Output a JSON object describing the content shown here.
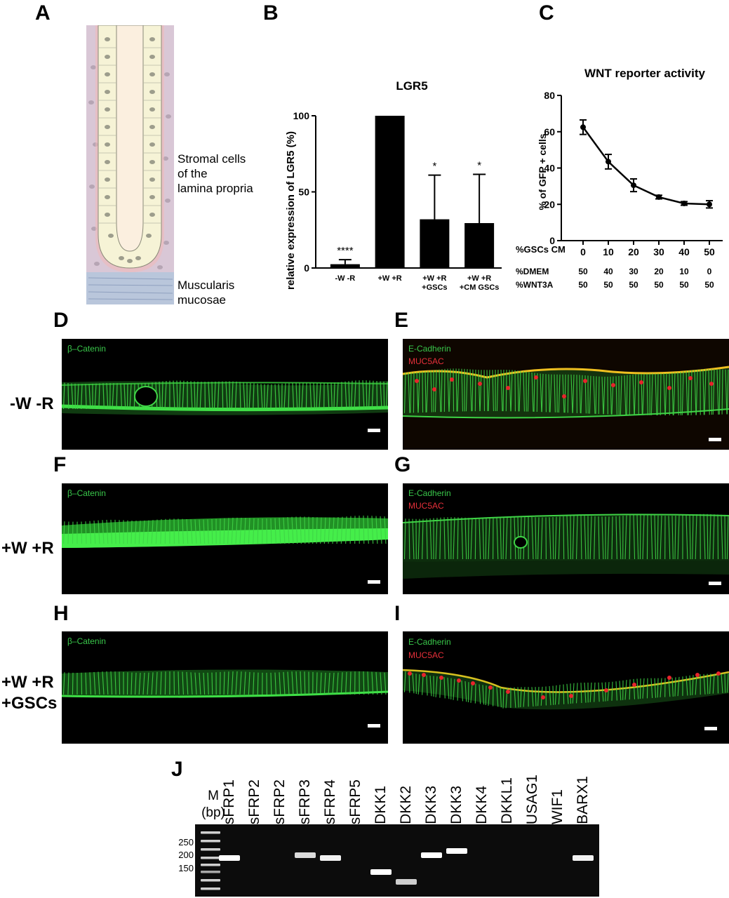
{
  "panels": {
    "A": "A",
    "B": "B",
    "C": "C",
    "D": "D",
    "E": "E",
    "F": "F",
    "G": "G",
    "H": "H",
    "I": "I",
    "J": "J"
  },
  "panel_a": {
    "label_stromal": [
      "Stromal cells",
      "of the",
      "lamina propria"
    ],
    "label_muscularis": [
      "Muscularis",
      "mucosae"
    ],
    "colors": {
      "stroma": "#d9c7d6",
      "epithelium": "#f6f3d6",
      "lumen": "#fbefdf",
      "muscle": "#b9c6db",
      "edge": "#f3b8b8"
    }
  },
  "chart_data": [
    {
      "type": "bar",
      "title": "LGR5",
      "ylabel": "relative expression of LGR5 (%)",
      "xlabel": "",
      "ylim": [
        0,
        100
      ],
      "yticks": [
        0,
        50,
        100
      ],
      "categories": [
        [
          "-W -R"
        ],
        [
          "+W +R"
        ],
        [
          "+W +R",
          "+GSCs"
        ],
        [
          "+W +R",
          "+CM GSCs"
        ]
      ],
      "values": [
        2.5,
        100,
        32,
        29.5
      ],
      "error": [
        3,
        0,
        29,
        32
      ],
      "significance": [
        "****",
        "",
        "*",
        "*"
      ],
      "bar_color": "#000000"
    },
    {
      "type": "line",
      "title": "WNT reporter activity",
      "ylabel": "% of GFP + cells",
      "xlabel": "%GSCs CM",
      "ylim": [
        0,
        80
      ],
      "yticks": [
        0,
        20,
        40,
        60,
        80
      ],
      "x": [
        0,
        10,
        20,
        30,
        40,
        50
      ],
      "values": [
        62.5,
        43.5,
        30.5,
        24,
        20.5,
        20
      ],
      "error": [
        4,
        4,
        3.5,
        1,
        1,
        2
      ],
      "extra_rows": [
        {
          "label": "%DMEM",
          "values": [
            "50",
            "40",
            "30",
            "20",
            "10",
            "0"
          ]
        },
        {
          "label": "%WNT3A",
          "values": [
            "50",
            "50",
            "50",
            "50",
            "50",
            "50"
          ]
        }
      ]
    }
  ],
  "micrographs": {
    "stain_beta": "β–Catenin",
    "stain_ecad": "E-Cadherin",
    "stain_muc": "MUC5AC",
    "rows": [
      [
        "-W -R"
      ],
      [
        "+W +R"
      ],
      [
        "+W +R",
        "+GSCs"
      ]
    ],
    "colors": {
      "green": "#35d43c",
      "red": "#e8242c"
    }
  },
  "gel": {
    "marker_label": [
      "M",
      "(bp)"
    ],
    "bp_labels": [
      "250",
      "200",
      "150"
    ],
    "lanes": [
      "sFRP1",
      "sFRP2",
      "sFRP2",
      "sFRP3",
      "sFRP4",
      "sFRP5",
      "DKK1",
      "DKK2",
      "DKK3",
      "DKK3",
      "DKK4",
      "DKKL1",
      "USAG1",
      "WIF1",
      "BARX1"
    ]
  }
}
